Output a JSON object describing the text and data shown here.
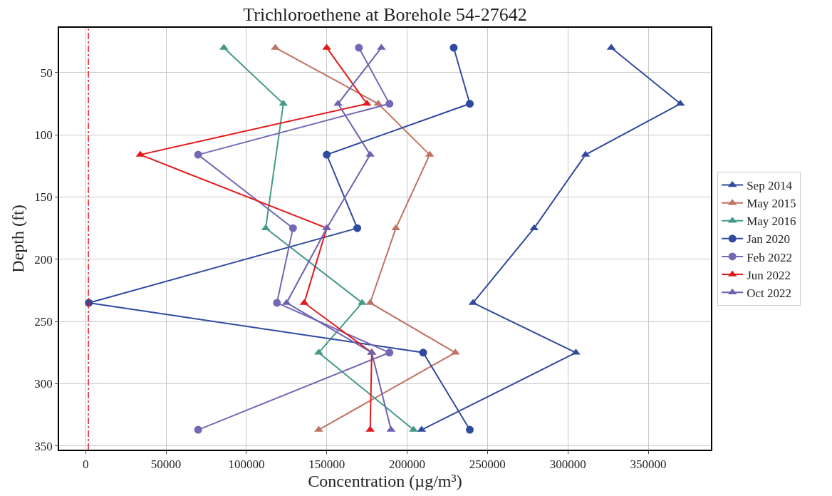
{
  "chart_data": {
    "type": "line",
    "title": "Trichloroethene at Borehole 54-27642",
    "xlabel": "Concentration (µg/m³)",
    "ylabel": "Depth (ft)",
    "xlim": [
      -16500,
      389000
    ],
    "xticks": [
      0,
      50000,
      100000,
      150000,
      200000,
      250000,
      300000,
      350000
    ],
    "ylim": [
      353,
      14
    ],
    "yticks": [
      50,
      100,
      150,
      200,
      250,
      300,
      350
    ],
    "grid": true,
    "legend": "right",
    "line_style": "solid",
    "ref_lines": [
      {
        "axis": "x",
        "value": 1700,
        "color": "#e3191c",
        "line_style": "dashdot"
      }
    ],
    "series": [
      {
        "name": "Sep 2014",
        "color": "#2f4a9c",
        "marker": "triangle",
        "x": [
          327000,
          370000,
          311000,
          279000,
          241000,
          305000,
          209000
        ],
        "values": [
          30,
          75,
          116,
          175,
          235,
          275,
          337
        ]
      },
      {
        "name": "May 2015",
        "color": "#c07262",
        "marker": "triangle",
        "x": [
          118000,
          182000,
          214000,
          193000,
          177000,
          230000,
          145000
        ],
        "values": [
          30,
          75,
          116,
          175,
          235,
          275,
          337
        ]
      },
      {
        "name": "May 2016",
        "color": "#44998a",
        "marker": "triangle",
        "x": [
          86000,
          123000,
          112000,
          172000,
          145000,
          204000
        ],
        "values": [
          30,
          75,
          175,
          235,
          275,
          337
        ]
      },
      {
        "name": "Jan 2020",
        "color": "#2f4ba0",
        "marker": "circle",
        "x": [
          229000,
          239000,
          150000,
          169000,
          2000,
          210000,
          239000
        ],
        "values": [
          30,
          75,
          116,
          175,
          235,
          275,
          337
        ]
      },
      {
        "name": "Feb 2022",
        "color": "#7468b4",
        "marker": "circle",
        "x": [
          170000,
          189000,
          70000,
          129000,
          119000,
          189000,
          70000
        ],
        "values": [
          30,
          75,
          116,
          175,
          235,
          275,
          337
        ]
      },
      {
        "name": "Jun 2022",
        "color": "#e3191c",
        "marker": "triangle",
        "x": [
          150000,
          175000,
          34000,
          150000,
          136000,
          178000,
          177000
        ],
        "values": [
          30,
          75,
          116,
          175,
          235,
          275,
          337
        ]
      },
      {
        "name": "Oct 2022",
        "color": "#6c62ae",
        "marker": "triangle",
        "x": [
          184000,
          157000,
          177000,
          150000,
          125000,
          178000,
          190000
        ],
        "values": [
          30,
          75,
          116,
          175,
          235,
          275,
          337
        ]
      }
    ]
  }
}
